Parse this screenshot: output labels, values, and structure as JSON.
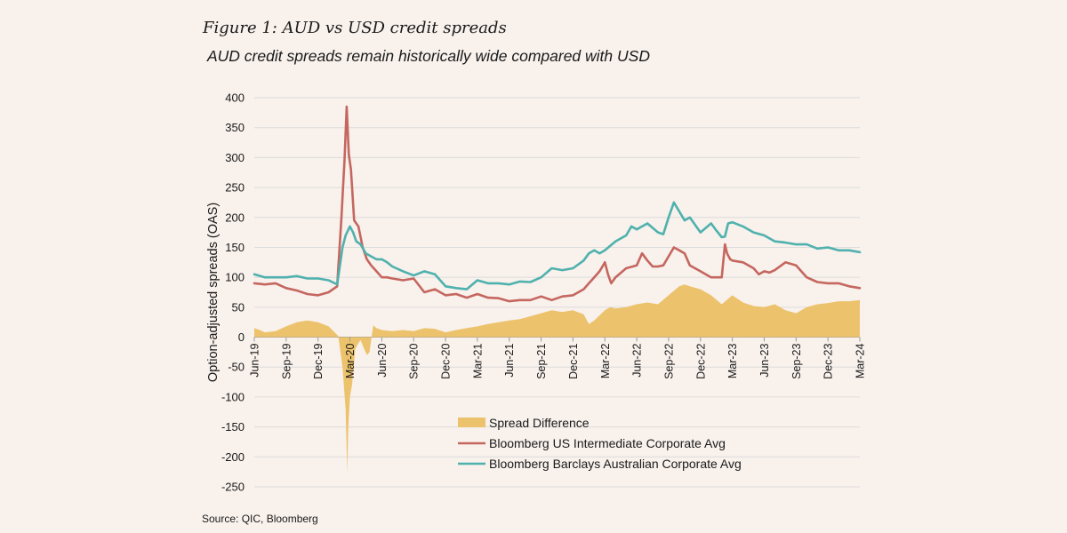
{
  "figure_title": "Figure 1: AUD vs USD credit spreads",
  "subtitle": "AUD credit spreads remain historically wide compared with USD",
  "source": "Source: QIC,  Bloomberg",
  "colors": {
    "background": "#f8f1ec",
    "spread_difference": "#ecc36c",
    "us_corporate": "#c5665f",
    "au_corporate": "#4fb1ad",
    "grid": "#dcdcdc"
  },
  "chart_data": {
    "type": "line",
    "title": "AUD credit spreads remain historically wide compared with USD",
    "xlabel": "",
    "ylabel": "Option-adjusted spreads (OAS)",
    "ylim": [
      -250,
      400
    ],
    "yticks": [
      400,
      350,
      300,
      250,
      200,
      150,
      100,
      50,
      0,
      -50,
      -100,
      -150,
      -200,
      -250
    ],
    "xlim": [
      0,
      57
    ],
    "xticks": [
      {
        "label": "Jun-19",
        "t": 0
      },
      {
        "label": "Sep-19",
        "t": 3
      },
      {
        "label": "Dec-19",
        "t": 6
      },
      {
        "label": "Mar-20",
        "t": 9
      },
      {
        "label": "Jun-20",
        "t": 12
      },
      {
        "label": "Sep-20",
        "t": 15
      },
      {
        "label": "Dec-20",
        "t": 18
      },
      {
        "label": "Mar-21",
        "t": 21
      },
      {
        "label": "Jun-21",
        "t": 24
      },
      {
        "label": "Sep-21",
        "t": 27
      },
      {
        "label": "Dec-21",
        "t": 30
      },
      {
        "label": "Mar-22",
        "t": 33
      },
      {
        "label": "Jun-22",
        "t": 36
      },
      {
        "label": "Sep-22",
        "t": 39
      },
      {
        "label": "Dec-22",
        "t": 42
      },
      {
        "label": "Mar-23",
        "t": 45
      },
      {
        "label": "Jun-23",
        "t": 48
      },
      {
        "label": "Sep-23",
        "t": 51
      },
      {
        "label": "Dec-23",
        "t": 54
      },
      {
        "label": "Mar-24",
        "t": 57
      }
    ],
    "grid": true,
    "legend_position": "bottom-center",
    "series": [
      {
        "name": "Spread Difference",
        "kind": "area",
        "x": [
          0,
          0.5,
          1,
          2,
          3,
          4,
          5,
          6,
          7,
          7.9,
          8.3,
          8.6,
          8.75,
          8.85,
          9,
          9.2,
          9.5,
          9.8,
          10,
          10.3,
          10.6,
          10.85,
          11,
          11.2,
          11.5,
          12,
          13,
          14,
          15,
          16,
          17,
          18,
          19,
          20,
          21,
          22,
          23,
          24,
          25,
          26,
          27,
          28,
          29,
          30,
          31,
          31.5,
          32,
          33,
          33.5,
          34,
          35,
          36,
          37,
          38,
          39,
          40,
          40.5,
          41,
          42,
          43,
          44,
          45,
          46,
          47,
          48,
          49,
          50,
          51,
          52,
          53,
          54,
          55,
          56,
          57
        ],
        "values": [
          15,
          12,
          8,
          10,
          18,
          25,
          28,
          25,
          18,
          2,
          -50,
          -120,
          -225,
          -150,
          -100,
          -80,
          -20,
          -10,
          -5,
          -18,
          -30,
          -25,
          -5,
          20,
          15,
          12,
          10,
          12,
          10,
          15,
          14,
          8,
          12,
          15,
          18,
          22,
          25,
          28,
          30,
          35,
          40,
          45,
          42,
          45,
          38,
          22,
          28,
          45,
          50,
          48,
          50,
          55,
          58,
          55,
          70,
          85,
          88,
          85,
          80,
          70,
          55,
          70,
          58,
          52,
          50,
          55,
          45,
          40,
          50,
          55,
          57,
          60,
          60,
          62
        ]
      },
      {
        "name": "Bloomberg US Intermediate Corporate Avg",
        "kind": "line",
        "x": [
          0,
          1,
          2,
          3,
          4,
          5,
          6,
          7,
          7.8,
          8.2,
          8.5,
          8.7,
          8.9,
          9.1,
          9.4,
          9.8,
          10.2,
          10.6,
          11,
          11.5,
          12,
          12.5,
          13,
          14,
          15,
          16,
          17,
          18,
          19,
          20,
          21,
          22,
          23,
          24,
          25,
          26,
          27,
          28,
          29,
          30,
          31,
          31.5,
          32,
          32.5,
          33,
          33.3,
          33.6,
          34,
          35,
          36,
          36.5,
          37,
          37.5,
          38,
          38.5,
          39,
          39.5,
          40,
          40.5,
          41,
          42,
          43,
          44,
          44.3,
          44.5,
          44.8,
          45,
          46,
          47,
          47.5,
          48,
          48.5,
          49,
          50,
          51,
          52,
          53,
          54,
          55,
          56,
          57
        ],
        "values": [
          90,
          88,
          90,
          82,
          78,
          72,
          70,
          75,
          85,
          200,
          300,
          385,
          305,
          280,
          195,
          185,
          150,
          130,
          120,
          110,
          100,
          100,
          98,
          95,
          98,
          75,
          80,
          70,
          72,
          66,
          72,
          66,
          65,
          60,
          62,
          62,
          68,
          62,
          68,
          70,
          80,
          90,
          100,
          110,
          125,
          105,
          90,
          100,
          115,
          120,
          140,
          128,
          118,
          118,
          120,
          135,
          150,
          145,
          140,
          120,
          110,
          100,
          100,
          155,
          140,
          130,
          128,
          125,
          115,
          105,
          110,
          108,
          112,
          125,
          120,
          100,
          92,
          90,
          90,
          85,
          82
        ]
      },
      {
        "name": "Bloomberg Barclays Australian Corporate Avg",
        "kind": "line",
        "x": [
          0,
          1,
          2,
          3,
          4,
          5,
          6,
          7,
          7.8,
          8.3,
          8.6,
          9,
          9.3,
          9.6,
          10,
          10.5,
          11,
          11.5,
          12,
          12.5,
          13,
          14,
          15,
          16,
          17,
          18,
          19,
          20,
          21,
          22,
          23,
          24,
          25,
          26,
          27,
          28,
          29,
          30,
          31,
          31.5,
          32,
          32.5,
          33,
          34,
          35,
          35.5,
          36,
          37,
          38,
          38.5,
          39,
          39.5,
          40,
          40.5,
          41,
          42,
          43,
          43.5,
          44,
          44.3,
          44.6,
          45,
          46,
          47,
          48,
          49,
          50,
          51,
          52,
          53,
          54,
          55,
          56,
          57
        ],
        "values": [
          105,
          100,
          100,
          100,
          102,
          98,
          98,
          95,
          88,
          150,
          170,
          185,
          175,
          160,
          155,
          140,
          135,
          130,
          130,
          125,
          118,
          110,
          103,
          110,
          105,
          85,
          82,
          80,
          95,
          90,
          90,
          88,
          93,
          92,
          100,
          115,
          112,
          115,
          128,
          140,
          145,
          140,
          145,
          160,
          170,
          185,
          180,
          190,
          175,
          172,
          200,
          225,
          210,
          195,
          200,
          175,
          190,
          178,
          167,
          168,
          190,
          192,
          185,
          175,
          170,
          160,
          158,
          155,
          155,
          148,
          150,
          145,
          145,
          142
        ]
      }
    ]
  }
}
